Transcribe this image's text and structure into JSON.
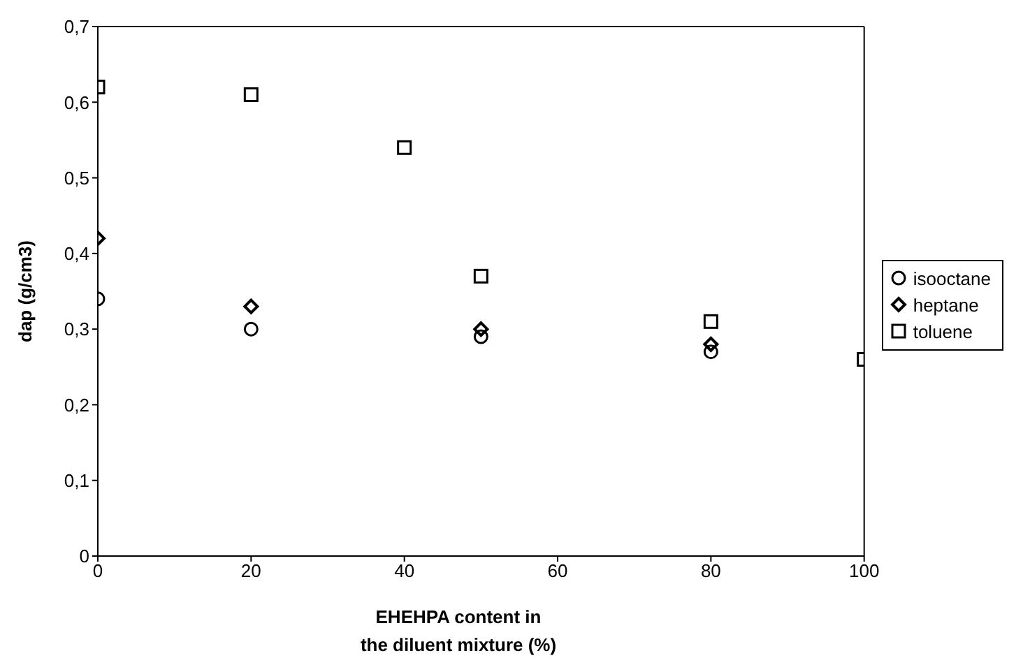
{
  "chart_data": {
    "type": "scatter",
    "xlabel": "EHEHPA content in\nthe diluent mixture (%)",
    "ylabel": "dap (g/cm3)",
    "xlim": [
      0,
      100
    ],
    "xticks": [
      0,
      20,
      40,
      60,
      80,
      100
    ],
    "ylim": [
      0,
      0.7
    ],
    "yticks": [
      {
        "value": 0,
        "label": "0"
      },
      {
        "value": 0.1,
        "label": "0,1"
      },
      {
        "value": 0.2,
        "label": "0,2"
      },
      {
        "value": 0.3,
        "label": "0,3"
      },
      {
        "value": 0.4,
        "label": "0,4"
      },
      {
        "value": 0.5,
        "label": "0,5"
      },
      {
        "value": 0.6,
        "label": "0,6"
      },
      {
        "value": 0.7,
        "label": "0,7"
      }
    ],
    "grid": false,
    "legend": "right",
    "series": [
      {
        "name": "isooctane",
        "color": "#000000",
        "marker": "circle",
        "x": [
          0,
          20,
          50,
          80
        ],
        "values": [
          0.34,
          0.3,
          0.29,
          0.27
        ]
      },
      {
        "name": "heptane",
        "color": "#000000",
        "marker": "diamond",
        "x": [
          0,
          20,
          50,
          80
        ],
        "values": [
          0.42,
          0.33,
          0.3,
          0.28
        ]
      },
      {
        "name": "toluene",
        "color": "#000000",
        "marker": "square",
        "x": [
          0,
          20,
          40,
          50,
          80,
          100
        ],
        "values": [
          0.62,
          0.61,
          0.54,
          0.37,
          0.31,
          0.26
        ]
      }
    ]
  }
}
